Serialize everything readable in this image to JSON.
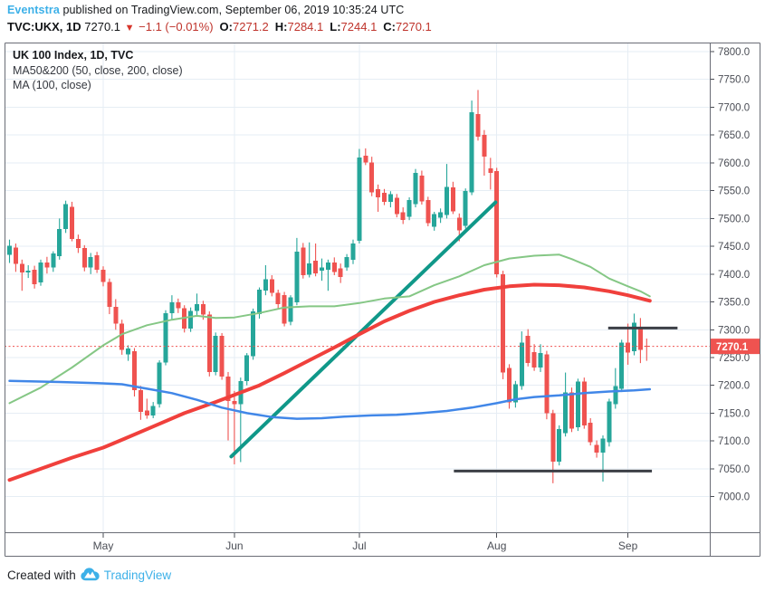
{
  "header": {
    "byline": {
      "author": "Eventstra",
      "rest": " published on TradingView.com, September 06, 2019 10:35:24 UTC"
    },
    "quote": {
      "symbol": "TVC:UKX, 1D",
      "price": "7270.1",
      "direction_icon": "▼",
      "change": "−1.1 (−0.01%)",
      "ohlc": [
        {
          "label": "O:",
          "value": "7271.2"
        },
        {
          "label": "H:",
          "value": "7284.1"
        },
        {
          "label": "L:",
          "value": "7244.1"
        },
        {
          "label": "C:",
          "value": "7270.1"
        }
      ]
    }
  },
  "legend": {
    "title": "UK 100 Index, 1D, TVC",
    "line2": "MA50&200 (50, close, 200, close)",
    "line3": "MA (100, close)"
  },
  "footer": {
    "created_with": "Created with",
    "brand": "TradingView"
  },
  "chart_data": {
    "type": "candlestick",
    "title": "UK 100 Index, 1D, TVC",
    "timeframe": "1D",
    "y_axis": {
      "min": 7000,
      "max": 7800,
      "step": 50,
      "side": "right",
      "grid": true
    },
    "x_axis": {
      "months": [
        {
          "label": "May",
          "index": 15
        },
        {
          "label": "Jun",
          "index": 36
        },
        {
          "label": "Jul",
          "index": 56
        },
        {
          "label": "Aug",
          "index": 78
        },
        {
          "label": "Sep",
          "index": 99
        }
      ]
    },
    "last_price": 7270.1,
    "last_price_label": "7270.1",
    "candles": [
      [
        7435,
        7462,
        7420,
        7451
      ],
      [
        7448,
        7455,
        7404,
        7418
      ],
      [
        7418,
        7426,
        7370,
        7403
      ],
      [
        7403,
        7416,
        7393,
        7406
      ],
      [
        7408,
        7415,
        7374,
        7382
      ],
      [
        7385,
        7426,
        7379,
        7421
      ],
      [
        7421,
        7431,
        7401,
        7412
      ],
      [
        7412,
        7441,
        7404,
        7437
      ],
      [
        7432,
        7500,
        7426,
        7481
      ],
      [
        7481,
        7532,
        7474,
        7526
      ],
      [
        7521,
        7530,
        7459,
        7463
      ],
      [
        7463,
        7471,
        7438,
        7447
      ],
      [
        7447,
        7452,
        7405,
        7412
      ],
      [
        7412,
        7438,
        7400,
        7431
      ],
      [
        7434,
        7440,
        7402,
        7408
      ],
      [
        7408,
        7414,
        7378,
        7386
      ],
      [
        7386,
        7392,
        7328,
        7341
      ],
      [
        7341,
        7355,
        7300,
        7311
      ],
      [
        7311,
        7318,
        7255,
        7264
      ],
      [
        7256,
        7272,
        7244,
        7266
      ],
      [
        7261,
        7267,
        7180,
        7191
      ],
      [
        7191,
        7199,
        7138,
        7152
      ],
      [
        7155,
        7176,
        7140,
        7146
      ],
      [
        7146,
        7170,
        7141,
        7163
      ],
      [
        7166,
        7245,
        7160,
        7241
      ],
      [
        7241,
        7335,
        7236,
        7330
      ],
      [
        7330,
        7362,
        7318,
        7349
      ],
      [
        7349,
        7356,
        7330,
        7339
      ],
      [
        7339,
        7344,
        7295,
        7302
      ],
      [
        7302,
        7340,
        7296,
        7334
      ],
      [
        7334,
        7365,
        7324,
        7346
      ],
      [
        7346,
        7352,
        7318,
        7327
      ],
      [
        7327,
        7333,
        7216,
        7224
      ],
      [
        7224,
        7295,
        7218,
        7289
      ],
      [
        7289,
        7294,
        7210,
        7216
      ],
      [
        7216,
        7224,
        7101,
        7172
      ],
      [
        7172,
        7190,
        7058,
        7166
      ],
      [
        7166,
        7214,
        7062,
        7208
      ],
      [
        7208,
        7258,
        7200,
        7254
      ],
      [
        7252,
        7338,
        7246,
        7333
      ],
      [
        7328,
        7376,
        7320,
        7372
      ],
      [
        7370,
        7416,
        7362,
        7391
      ],
      [
        7391,
        7398,
        7360,
        7366
      ],
      [
        7366,
        7372,
        7338,
        7346
      ],
      [
        7362,
        7368,
        7306,
        7311
      ],
      [
        7314,
        7362,
        7308,
        7358
      ],
      [
        7349,
        7465,
        7344,
        7440
      ],
      [
        7448,
        7456,
        7392,
        7398
      ],
      [
        7399,
        7457,
        7394,
        7419
      ],
      [
        7424,
        7455,
        7396,
        7401
      ],
      [
        7406,
        7428,
        7388,
        7412
      ],
      [
        7408,
        7426,
        7370,
        7421
      ],
      [
        7421,
        7430,
        7398,
        7404
      ],
      [
        7410,
        7419,
        7384,
        7395
      ],
      [
        7412,
        7436,
        7406,
        7431
      ],
      [
        7426,
        7462,
        7418,
        7455
      ],
      [
        7460,
        7625,
        7455,
        7610
      ],
      [
        7613,
        7626,
        7596,
        7601
      ],
      [
        7601,
        7611,
        7540,
        7547
      ],
      [
        7553,
        7561,
        7512,
        7538
      ],
      [
        7546,
        7553,
        7524,
        7530
      ],
      [
        7530,
        7549,
        7520,
        7544
      ],
      [
        7537,
        7544,
        7502,
        7508
      ],
      [
        7511,
        7520,
        7490,
        7497
      ],
      [
        7503,
        7538,
        7497,
        7533
      ],
      [
        7526,
        7589,
        7520,
        7582
      ],
      [
        7577,
        7586,
        7525,
        7531
      ],
      [
        7533,
        7539,
        7486,
        7492
      ],
      [
        7485,
        7512,
        7478,
        7508
      ],
      [
        7501,
        7518,
        7492,
        7511
      ],
      [
        7506,
        7598,
        7500,
        7557
      ],
      [
        7556,
        7566,
        7508,
        7513
      ],
      [
        7501,
        7509,
        7459,
        7479
      ],
      [
        7487,
        7554,
        7482,
        7549
      ],
      [
        7547,
        7712,
        7542,
        7691
      ],
      [
        7688,
        7731,
        7640,
        7647
      ],
      [
        7650,
        7659,
        7577,
        7611
      ],
      [
        7590,
        7609,
        7552,
        7582
      ],
      [
        7585,
        7591,
        7394,
        7400
      ],
      [
        7400,
        7406,
        7211,
        7223
      ],
      [
        7231,
        7238,
        7158,
        7169
      ],
      [
        7169,
        7208,
        7160,
        7202
      ],
      [
        7199,
        7297,
        7192,
        7277
      ],
      [
        7289,
        7301,
        7234,
        7240
      ],
      [
        7260,
        7274,
        7226,
        7232
      ],
      [
        7232,
        7274,
        7224,
        7258
      ],
      [
        7256,
        7262,
        7139,
        7150
      ],
      [
        7150,
        7156,
        7024,
        7063
      ],
      [
        7063,
        7128,
        7056,
        7121
      ],
      [
        7114,
        7223,
        7108,
        7187
      ],
      [
        7187,
        7196,
        7116,
        7122
      ],
      [
        7125,
        7212,
        7118,
        7207
      ],
      [
        7207,
        7214,
        7122,
        7128
      ],
      [
        7133,
        7141,
        7092,
        7098
      ],
      [
        7093,
        7101,
        7070,
        7079
      ],
      [
        7079,
        7110,
        7027,
        7104
      ],
      [
        7098,
        7176,
        7090,
        7171
      ],
      [
        7166,
        7231,
        7158,
        7199
      ],
      [
        7194,
        7282,
        7188,
        7277
      ],
      [
        7277,
        7311,
        7237,
        7259
      ],
      [
        7261,
        7329,
        7254,
        7313
      ],
      [
        7301,
        7321,
        7240,
        7264
      ],
      [
        7271.2,
        7284.1,
        7244.1,
        7270.1
      ]
    ],
    "overlays": {
      "ma50": [
        [
          0,
          7168
        ],
        [
          5,
          7196
        ],
        [
          10,
          7232
        ],
        [
          15,
          7272
        ],
        [
          18,
          7292
        ],
        [
          22,
          7308
        ],
        [
          26,
          7318
        ],
        [
          30,
          7325
        ],
        [
          33,
          7321
        ],
        [
          36,
          7322
        ],
        [
          40,
          7330
        ],
        [
          44,
          7340
        ],
        [
          48,
          7342
        ],
        [
          52,
          7342
        ],
        [
          56,
          7348
        ],
        [
          60,
          7356
        ],
        [
          64,
          7360
        ],
        [
          68,
          7380
        ],
        [
          72,
          7396
        ],
        [
          76,
          7416
        ],
        [
          80,
          7428
        ],
        [
          84,
          7433
        ],
        [
          88,
          7435
        ],
        [
          90,
          7427
        ],
        [
          93,
          7413
        ],
        [
          96,
          7392
        ],
        [
          99,
          7378
        ],
        [
          101,
          7369
        ],
        [
          102.5,
          7360
        ]
      ],
      "ma100": [
        [
          0,
          7208
        ],
        [
          8,
          7206
        ],
        [
          14,
          7204
        ],
        [
          18,
          7202
        ],
        [
          22,
          7194
        ],
        [
          26,
          7186
        ],
        [
          30,
          7174
        ],
        [
          34,
          7160
        ],
        [
          38,
          7150
        ],
        [
          42,
          7143
        ],
        [
          46,
          7140
        ],
        [
          50,
          7141
        ],
        [
          54,
          7144
        ],
        [
          58,
          7146
        ],
        [
          62,
          7147
        ],
        [
          66,
          7150
        ],
        [
          70,
          7154
        ],
        [
          74,
          7160
        ],
        [
          78,
          7168
        ],
        [
          81,
          7175
        ],
        [
          84,
          7179
        ],
        [
          88,
          7182
        ],
        [
          92,
          7186
        ],
        [
          96,
          7189
        ],
        [
          100,
          7191
        ],
        [
          102.5,
          7193
        ]
      ],
      "ma200": [
        [
          0,
          7030
        ],
        [
          5,
          7050
        ],
        [
          10,
          7070
        ],
        [
          15,
          7088
        ],
        [
          18,
          7102
        ],
        [
          23,
          7126
        ],
        [
          28,
          7150
        ],
        [
          33,
          7170
        ],
        [
          36.5,
          7185
        ],
        [
          40,
          7200
        ],
        [
          44,
          7222
        ],
        [
          48,
          7245
        ],
        [
          52,
          7268
        ],
        [
          56,
          7292
        ],
        [
          60,
          7315
        ],
        [
          64,
          7334
        ],
        [
          68,
          7350
        ],
        [
          72,
          7362
        ],
        [
          76,
          7372
        ],
        [
          80,
          7378
        ],
        [
          84,
          7381
        ],
        [
          88,
          7380
        ],
        [
          92,
          7376
        ],
        [
          96,
          7369
        ],
        [
          99,
          7362
        ],
        [
          102.5,
          7352
        ]
      ],
      "trendline": {
        "from": {
          "index": 35.5,
          "price": 7072
        },
        "to": {
          "index": 77.8,
          "price": 7529
        }
      },
      "levels": [
        {
          "name": "support",
          "price": 7046,
          "from_index": 71.5,
          "to_index": 103.2
        },
        {
          "name": "resistance",
          "price": 7303,
          "from_index": 96.2,
          "to_index": 107.3
        }
      ]
    },
    "colors": {
      "up": "#26a69a",
      "down": "#ef5350",
      "ma50": "#85c785",
      "ma100": "#4187e8",
      "ma200": "#f0403c",
      "trendline": "#109889",
      "level_line": "#3c3f46",
      "last_price_line": "#ef5350",
      "last_price_bg": "#ef5350",
      "grid": "#e6edf4",
      "border": "#6a6d76",
      "axis_text": "#4a4d55"
    }
  }
}
